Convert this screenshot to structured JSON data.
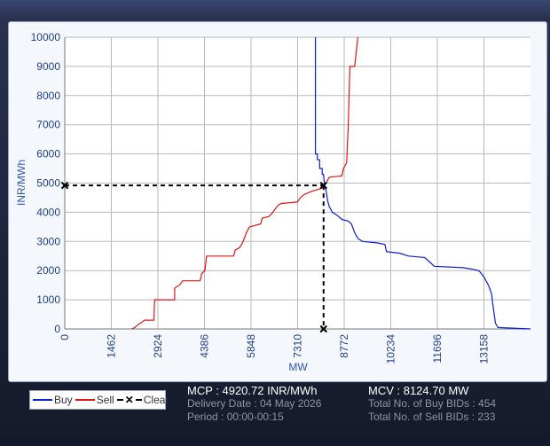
{
  "chart_data": {
    "type": "line",
    "xlabel": "MW",
    "ylabel": "INR/MWh",
    "xlim": [
      0,
      14620
    ],
    "ylim": [
      0,
      10000
    ],
    "x_ticks": [
      0,
      1462,
      2924,
      4386,
      5848,
      7310,
      8772,
      10234,
      11696,
      13158
    ],
    "y_ticks": [
      0,
      1000,
      2000,
      3000,
      4000,
      5000,
      6000,
      7000,
      8000,
      9000,
      10000
    ],
    "grid": true,
    "series": [
      {
        "name": "Buy",
        "color": "#0a1ed2",
        "points": [
          [
            7870,
            10000
          ],
          [
            7870,
            6000
          ],
          [
            7930,
            6000
          ],
          [
            7930,
            5800
          ],
          [
            8000,
            5800
          ],
          [
            8000,
            5500
          ],
          [
            8080,
            5500
          ],
          [
            8080,
            5300
          ],
          [
            8120,
            5300
          ],
          [
            8150,
            5000
          ],
          [
            8150,
            4920
          ],
          [
            8200,
            4750
          ],
          [
            8250,
            4400
          ],
          [
            8300,
            4200
          ],
          [
            8400,
            4000
          ],
          [
            8550,
            3900
          ],
          [
            8700,
            3750
          ],
          [
            8900,
            3700
          ],
          [
            9000,
            3600
          ],
          [
            9100,
            3300
          ],
          [
            9200,
            3100
          ],
          [
            9350,
            3000
          ],
          [
            9800,
            2950
          ],
          [
            10050,
            2900
          ],
          [
            10100,
            2650
          ],
          [
            10500,
            2600
          ],
          [
            10800,
            2500
          ],
          [
            11300,
            2450
          ],
          [
            11500,
            2250
          ],
          [
            11600,
            2150
          ],
          [
            12500,
            2100
          ],
          [
            12800,
            2050
          ],
          [
            13000,
            2000
          ],
          [
            13150,
            1800
          ],
          [
            13300,
            1500
          ],
          [
            13400,
            1200
          ],
          [
            13430,
            900
          ],
          [
            13480,
            500
          ],
          [
            13520,
            200
          ],
          [
            13600,
            50
          ],
          [
            14620,
            0
          ]
        ]
      },
      {
        "name": "Sell",
        "color": "#e01414",
        "points": [
          [
            2100,
            0
          ],
          [
            2200,
            50
          ],
          [
            2300,
            150
          ],
          [
            2450,
            250
          ],
          [
            2500,
            300
          ],
          [
            2800,
            300
          ],
          [
            2820,
            1000
          ],
          [
            3450,
            1000
          ],
          [
            3450,
            1400
          ],
          [
            3600,
            1500
          ],
          [
            3700,
            1650
          ],
          [
            4250,
            1650
          ],
          [
            4300,
            1900
          ],
          [
            4400,
            2000
          ],
          [
            4450,
            2500
          ],
          [
            5300,
            2500
          ],
          [
            5350,
            2700
          ],
          [
            5500,
            2800
          ],
          [
            5600,
            3000
          ],
          [
            5700,
            3300
          ],
          [
            5800,
            3500
          ],
          [
            6150,
            3600
          ],
          [
            6200,
            3800
          ],
          [
            6400,
            3850
          ],
          [
            6500,
            3950
          ],
          [
            6600,
            4100
          ],
          [
            6700,
            4250
          ],
          [
            6800,
            4300
          ],
          [
            7300,
            4350
          ],
          [
            7400,
            4500
          ],
          [
            7500,
            4600
          ],
          [
            7700,
            4700
          ],
          [
            8000,
            4800
          ],
          [
            8100,
            4850
          ],
          [
            8150,
            4920
          ],
          [
            8250,
            5100
          ],
          [
            8300,
            5200
          ],
          [
            8700,
            5250
          ],
          [
            8750,
            5500
          ],
          [
            8850,
            5700
          ],
          [
            8900,
            7000
          ],
          [
            8950,
            9000
          ],
          [
            9100,
            9000
          ],
          [
            9200,
            10000
          ]
        ]
      },
      {
        "name": "Clear",
        "color": "#000000",
        "mcp": 4920.72,
        "mcv": 8124.7
      }
    ]
  },
  "legend": {
    "buy": "Buy",
    "sell": "Sell",
    "clear": "Clear"
  },
  "info": {
    "mcp": "MCP : 4920.72 INR/MWh",
    "delivery_date": "Delivery Date : 04 May 2026",
    "period": "Period :  00:00-00:15",
    "mcv": "MCV : 8124.70 MW",
    "buy_bids": "Total No. of Buy BIDs : 454",
    "sell_bids": "Total No. of Sell BIDs : 233"
  }
}
